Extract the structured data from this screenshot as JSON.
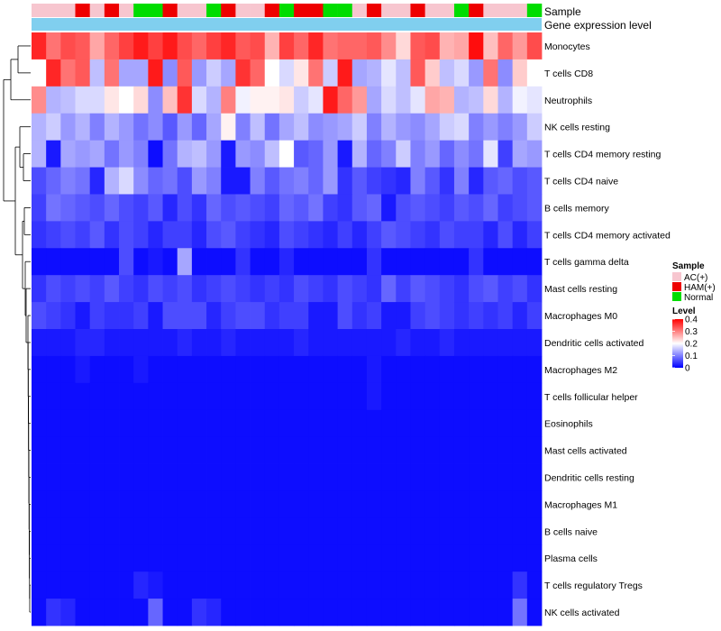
{
  "chart_data": {
    "type": "heatmap",
    "annotation_labels": {
      "sample": "Sample",
      "gene_expression": "Gene expression level"
    },
    "sample_colors": {
      "AC(+)": "#f7c6cf",
      "HAM(+)": "#ee0000",
      "Normal": "#00dd00"
    },
    "gene_expression_color": "#80cfef",
    "sample_groups": [
      "AC(+)",
      "AC(+)",
      "AC(+)",
      "HAM(+)",
      "AC(+)",
      "HAM(+)",
      "AC(+)",
      "Normal",
      "Normal",
      "HAM(+)",
      "AC(+)",
      "AC(+)",
      "Normal",
      "HAM(+)",
      "AC(+)",
      "AC(+)",
      "HAM(+)",
      "Normal",
      "HAM(+)",
      "HAM(+)",
      "Normal",
      "Normal",
      "AC(+)",
      "HAM(+)",
      "AC(+)",
      "AC(+)",
      "HAM(+)",
      "AC(+)",
      "AC(+)",
      "Normal",
      "HAM(+)",
      "AC(+)",
      "AC(+)",
      "AC(+)",
      "Normal"
    ],
    "rows": [
      "Monocytes",
      "T cells CD8",
      "Neutrophils",
      "NK cells resting",
      "T cells CD4 memory resting",
      "T cells CD4 naive",
      "B cells memory",
      "T cells CD4 memory activated",
      "T cells gamma delta",
      "Mast cells resting",
      "Macrophages M0",
      "Dendritic cells activated",
      "Macrophages M2",
      "T cells follicular helper",
      "Eosinophils",
      "Mast cells activated",
      "Dendritic cells resting",
      "Macrophages M1",
      "B cells naive",
      "Plasma cells",
      "T cells regulatory  Tregs",
      "NK cells activated"
    ],
    "color_scale": {
      "min": 0,
      "max": 0.4,
      "low": "#0000ff",
      "mid": "#ffffff",
      "high": "#ff0000",
      "mid_value": 0.2
    },
    "values": [
      [
        0.37,
        0.31,
        0.34,
        0.33,
        0.27,
        0.32,
        0.35,
        0.38,
        0.35,
        0.38,
        0.34,
        0.32,
        0.35,
        0.37,
        0.33,
        0.34,
        0.26,
        0.35,
        0.32,
        0.37,
        0.31,
        0.32,
        0.32,
        0.33,
        0.29,
        0.23,
        0.33,
        0.34,
        0.26,
        0.27,
        0.39,
        0.25,
        0.32,
        0.28,
        0.34
      ],
      [
        0.2,
        0.37,
        0.31,
        0.33,
        0.15,
        0.31,
        0.13,
        0.13,
        0.38,
        0.11,
        0.33,
        0.12,
        0.16,
        0.13,
        0.36,
        0.32,
        0.2,
        0.17,
        0.22,
        0.31,
        0.16,
        0.38,
        0.13,
        0.14,
        0.18,
        0.15,
        0.33,
        0.24,
        0.15,
        0.17,
        0.12,
        0.31,
        0.11,
        0.24,
        0.2
      ],
      [
        0.29,
        0.14,
        0.15,
        0.17,
        0.17,
        0.22,
        0.2,
        0.23,
        0.11,
        0.25,
        0.36,
        0.17,
        0.14,
        0.3,
        0.19,
        0.21,
        0.21,
        0.22,
        0.16,
        0.18,
        0.38,
        0.32,
        0.28,
        0.13,
        0.17,
        0.15,
        0.18,
        0.27,
        0.26,
        0.14,
        0.15,
        0.23,
        0.14,
        0.19,
        0.18
      ],
      [
        0.14,
        0.16,
        0.12,
        0.14,
        0.1,
        0.14,
        0.12,
        0.09,
        0.11,
        0.07,
        0.12,
        0.08,
        0.13,
        0.21,
        0.1,
        0.15,
        0.09,
        0.13,
        0.15,
        0.11,
        0.12,
        0.13,
        0.16,
        0.1,
        0.14,
        0.12,
        0.11,
        0.13,
        0.16,
        0.17,
        0.1,
        0.12,
        0.1,
        0.12,
        0.16
      ],
      [
        0.14,
        0.02,
        0.13,
        0.12,
        0.13,
        0.09,
        0.12,
        0.1,
        0.01,
        0.09,
        0.14,
        0.15,
        0.12,
        0.02,
        0.12,
        0.11,
        0.15,
        0.2,
        0.07,
        0.08,
        0.12,
        0.02,
        0.14,
        0.08,
        0.1,
        0.16,
        0.1,
        0.12,
        0.08,
        0.11,
        0.09,
        0.18,
        0.05,
        0.13,
        0.12
      ],
      [
        0.06,
        0.08,
        0.1,
        0.09,
        0.03,
        0.14,
        0.17,
        0.11,
        0.08,
        0.09,
        0.06,
        0.12,
        0.1,
        0.02,
        0.02,
        0.1,
        0.07,
        0.09,
        0.1,
        0.08,
        0.12,
        0.04,
        0.07,
        0.05,
        0.04,
        0.03,
        0.1,
        0.07,
        0.04,
        0.1,
        0.03,
        0.07,
        0.08,
        0.06,
        0.07
      ],
      [
        0.05,
        0.09,
        0.08,
        0.07,
        0.06,
        0.08,
        0.06,
        0.05,
        0.07,
        0.03,
        0.06,
        0.04,
        0.08,
        0.06,
        0.07,
        0.06,
        0.05,
        0.08,
        0.07,
        0.09,
        0.05,
        0.04,
        0.07,
        0.08,
        0.02,
        0.06,
        0.07,
        0.06,
        0.05,
        0.07,
        0.06,
        0.08,
        0.05,
        0.06,
        0.07
      ],
      [
        0.04,
        0.05,
        0.06,
        0.05,
        0.07,
        0.04,
        0.06,
        0.05,
        0.03,
        0.05,
        0.05,
        0.03,
        0.06,
        0.07,
        0.05,
        0.04,
        0.03,
        0.06,
        0.05,
        0.04,
        0.03,
        0.05,
        0.03,
        0.05,
        0.07,
        0.06,
        0.05,
        0.04,
        0.06,
        0.05,
        0.05,
        0.03,
        0.06,
        0.03,
        0.05
      ],
      [
        0.01,
        0.01,
        0.01,
        0.01,
        0.01,
        0.01,
        0.06,
        0.01,
        0.02,
        0.01,
        0.13,
        0.01,
        0.01,
        0.01,
        0.04,
        0.01,
        0.01,
        0.03,
        0.01,
        0.01,
        0.01,
        0.01,
        0.01,
        0.04,
        0.01,
        0.01,
        0.01,
        0.01,
        0.01,
        0.01,
        0.04,
        0.01,
        0.01,
        0.01,
        0.01
      ],
      [
        0.04,
        0.06,
        0.05,
        0.06,
        0.05,
        0.07,
        0.05,
        0.04,
        0.06,
        0.05,
        0.06,
        0.04,
        0.05,
        0.06,
        0.05,
        0.04,
        0.05,
        0.04,
        0.06,
        0.05,
        0.04,
        0.06,
        0.05,
        0.04,
        0.08,
        0.05,
        0.07,
        0.06,
        0.05,
        0.04,
        0.06,
        0.07,
        0.05,
        0.06,
        0.04
      ],
      [
        0.06,
        0.05,
        0.04,
        0.02,
        0.05,
        0.04,
        0.04,
        0.05,
        0.02,
        0.06,
        0.06,
        0.06,
        0.03,
        0.05,
        0.06,
        0.06,
        0.04,
        0.05,
        0.05,
        0.02,
        0.02,
        0.06,
        0.04,
        0.05,
        0.02,
        0.02,
        0.05,
        0.06,
        0.05,
        0.04,
        0.05,
        0.04,
        0.05,
        0.03,
        0.05
      ],
      [
        0.02,
        0.02,
        0.02,
        0.03,
        0.03,
        0.02,
        0.02,
        0.02,
        0.02,
        0.02,
        0.03,
        0.02,
        0.02,
        0.03,
        0.02,
        0.02,
        0.02,
        0.02,
        0.03,
        0.02,
        0.02,
        0.02,
        0.02,
        0.02,
        0.02,
        0.03,
        0.02,
        0.02,
        0.03,
        0.02,
        0.02,
        0.02,
        0.02,
        0.02,
        0.02
      ],
      [
        0.01,
        0.01,
        0.01,
        0.02,
        0.01,
        0.01,
        0.01,
        0.02,
        0.01,
        0.01,
        0.01,
        0.01,
        0.01,
        0.01,
        0.01,
        0.01,
        0.01,
        0.01,
        0.01,
        0.01,
        0.01,
        0.01,
        0.01,
        0.02,
        0.01,
        0.01,
        0.01,
        0.01,
        0.01,
        0.01,
        0.01,
        0.01,
        0.01,
        0.01,
        0.01
      ],
      [
        0.01,
        0.01,
        0.01,
        0.01,
        0.01,
        0.01,
        0.01,
        0.01,
        0.01,
        0.01,
        0.01,
        0.01,
        0.01,
        0.01,
        0.01,
        0.01,
        0.01,
        0.01,
        0.01,
        0.01,
        0.01,
        0.01,
        0.01,
        0.02,
        0.01,
        0.01,
        0.01,
        0.01,
        0.01,
        0.01,
        0.01,
        0.01,
        0.01,
        0.01,
        0.01
      ],
      [
        0.01,
        0.01,
        0.01,
        0.01,
        0.01,
        0.01,
        0.01,
        0.01,
        0.01,
        0.01,
        0.01,
        0.01,
        0.01,
        0.01,
        0.01,
        0.01,
        0.01,
        0.01,
        0.01,
        0.01,
        0.01,
        0.01,
        0.01,
        0.01,
        0.01,
        0.01,
        0.01,
        0.01,
        0.01,
        0.01,
        0.01,
        0.01,
        0.01,
        0.01,
        0.01
      ],
      [
        0.01,
        0.01,
        0.01,
        0.01,
        0.01,
        0.01,
        0.01,
        0.01,
        0.01,
        0.01,
        0.01,
        0.01,
        0.01,
        0.01,
        0.01,
        0.01,
        0.01,
        0.01,
        0.01,
        0.01,
        0.01,
        0.01,
        0.01,
        0.01,
        0.01,
        0.01,
        0.01,
        0.01,
        0.01,
        0.01,
        0.01,
        0.01,
        0.01,
        0.01,
        0.01
      ],
      [
        0.01,
        0.01,
        0.01,
        0.01,
        0.01,
        0.01,
        0.01,
        0.01,
        0.01,
        0.01,
        0.01,
        0.01,
        0.01,
        0.01,
        0.01,
        0.01,
        0.01,
        0.01,
        0.01,
        0.01,
        0.01,
        0.01,
        0.01,
        0.01,
        0.01,
        0.01,
        0.01,
        0.01,
        0.01,
        0.01,
        0.01,
        0.01,
        0.01,
        0.01,
        0.01
      ],
      [
        0.01,
        0.01,
        0.01,
        0.01,
        0.01,
        0.01,
        0.01,
        0.01,
        0.01,
        0.01,
        0.01,
        0.01,
        0.01,
        0.01,
        0.01,
        0.01,
        0.01,
        0.01,
        0.01,
        0.01,
        0.01,
        0.01,
        0.01,
        0.01,
        0.01,
        0.01,
        0.01,
        0.01,
        0.01,
        0.01,
        0.01,
        0.01,
        0.01,
        0.01,
        0.01
      ],
      [
        0.01,
        0.01,
        0.01,
        0.01,
        0.01,
        0.01,
        0.01,
        0.01,
        0.01,
        0.01,
        0.01,
        0.01,
        0.01,
        0.01,
        0.01,
        0.01,
        0.01,
        0.01,
        0.01,
        0.01,
        0.01,
        0.01,
        0.01,
        0.01,
        0.01,
        0.01,
        0.01,
        0.01,
        0.01,
        0.01,
        0.01,
        0.01,
        0.01,
        0.01,
        0.01
      ],
      [
        0.01,
        0.01,
        0.01,
        0.01,
        0.01,
        0.01,
        0.01,
        0.01,
        0.01,
        0.01,
        0.01,
        0.01,
        0.01,
        0.01,
        0.01,
        0.01,
        0.01,
        0.01,
        0.01,
        0.01,
        0.01,
        0.01,
        0.01,
        0.01,
        0.01,
        0.01,
        0.01,
        0.01,
        0.01,
        0.01,
        0.01,
        0.01,
        0.01,
        0.01,
        0.01
      ],
      [
        0.01,
        0.01,
        0.01,
        0.01,
        0.01,
        0.01,
        0.01,
        0.03,
        0.02,
        0.01,
        0.01,
        0.01,
        0.01,
        0.01,
        0.01,
        0.01,
        0.01,
        0.01,
        0.01,
        0.01,
        0.01,
        0.01,
        0.01,
        0.01,
        0.01,
        0.01,
        0.01,
        0.01,
        0.01,
        0.01,
        0.01,
        0.01,
        0.01,
        0.04,
        0.01
      ],
      [
        0.01,
        0.04,
        0.03,
        0.01,
        0.01,
        0.01,
        0.01,
        0.01,
        0.08,
        0.01,
        0.01,
        0.04,
        0.03,
        0.01,
        0.01,
        0.01,
        0.01,
        0.01,
        0.01,
        0.01,
        0.01,
        0.01,
        0.01,
        0.01,
        0.01,
        0.01,
        0.01,
        0.01,
        0.01,
        0.01,
        0.01,
        0.01,
        0.01,
        0.09,
        0.01
      ]
    ],
    "legend": {
      "sample_title": "Sample",
      "sample_entries": [
        "AC(+)",
        "HAM(+)",
        "Normal"
      ],
      "level_title": "Level",
      "level_ticks": [
        "0.4",
        "0.3",
        "0.2",
        "0.1",
        "0"
      ],
      "level_tick_values": [
        0.4,
        0.3,
        0.2,
        0.1,
        0
      ]
    }
  }
}
